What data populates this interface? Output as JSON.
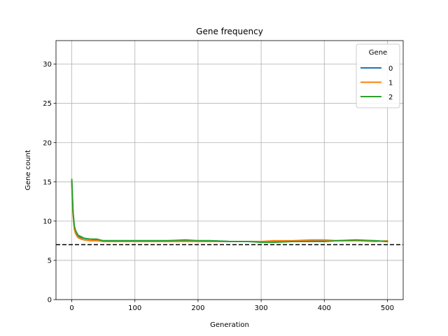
{
  "chart_data": {
    "type": "line",
    "title": "Gene frequency",
    "xlabel": "Generation",
    "ylabel": "Gene count",
    "xlim": [
      -25,
      525
    ],
    "ylim": [
      0,
      33
    ],
    "xticks": [
      0,
      100,
      200,
      300,
      400,
      500
    ],
    "yticks": [
      0,
      5,
      10,
      15,
      20,
      25,
      30
    ],
    "grid": true,
    "legend": {
      "title": "Gene",
      "placement": "top-right"
    },
    "reference_line": {
      "y": 7,
      "style": "dashed",
      "color": "#000000"
    },
    "x": [
      0,
      2,
      4,
      6,
      8,
      10,
      15,
      20,
      30,
      40,
      50,
      60,
      80,
      100,
      120,
      150,
      180,
      200,
      220,
      250,
      280,
      300,
      320,
      350,
      380,
      400,
      420,
      450,
      480,
      500
    ],
    "series": [
      {
        "name": "0",
        "color": "#1f77b4",
        "values": [
          15.0,
          11.0,
          9.2,
          8.6,
          8.3,
          8.1,
          7.9,
          7.8,
          7.7,
          7.6,
          7.5,
          7.5,
          7.5,
          7.5,
          7.5,
          7.5,
          7.5,
          7.5,
          7.5,
          7.4,
          7.4,
          7.4,
          7.4,
          7.4,
          7.5,
          7.5,
          7.5,
          7.5,
          7.5,
          7.4
        ]
      },
      {
        "name": "1",
        "color": "#ff7f0e",
        "values": [
          14.8,
          10.8,
          9.0,
          8.4,
          8.1,
          7.9,
          7.7,
          7.6,
          7.5,
          7.5,
          7.4,
          7.4,
          7.4,
          7.4,
          7.4,
          7.4,
          7.4,
          7.4,
          7.4,
          7.4,
          7.4,
          7.4,
          7.5,
          7.5,
          7.6,
          7.6,
          7.5,
          7.5,
          7.4,
          7.5
        ]
      },
      {
        "name": "2",
        "color": "#2ca02c",
        "values": [
          15.3,
          11.2,
          9.4,
          8.8,
          8.5,
          8.2,
          8.0,
          7.8,
          7.7,
          7.7,
          7.5,
          7.5,
          7.5,
          7.5,
          7.5,
          7.5,
          7.6,
          7.5,
          7.5,
          7.4,
          7.4,
          7.3,
          7.3,
          7.4,
          7.4,
          7.4,
          7.5,
          7.6,
          7.5,
          7.4
        ]
      }
    ]
  }
}
